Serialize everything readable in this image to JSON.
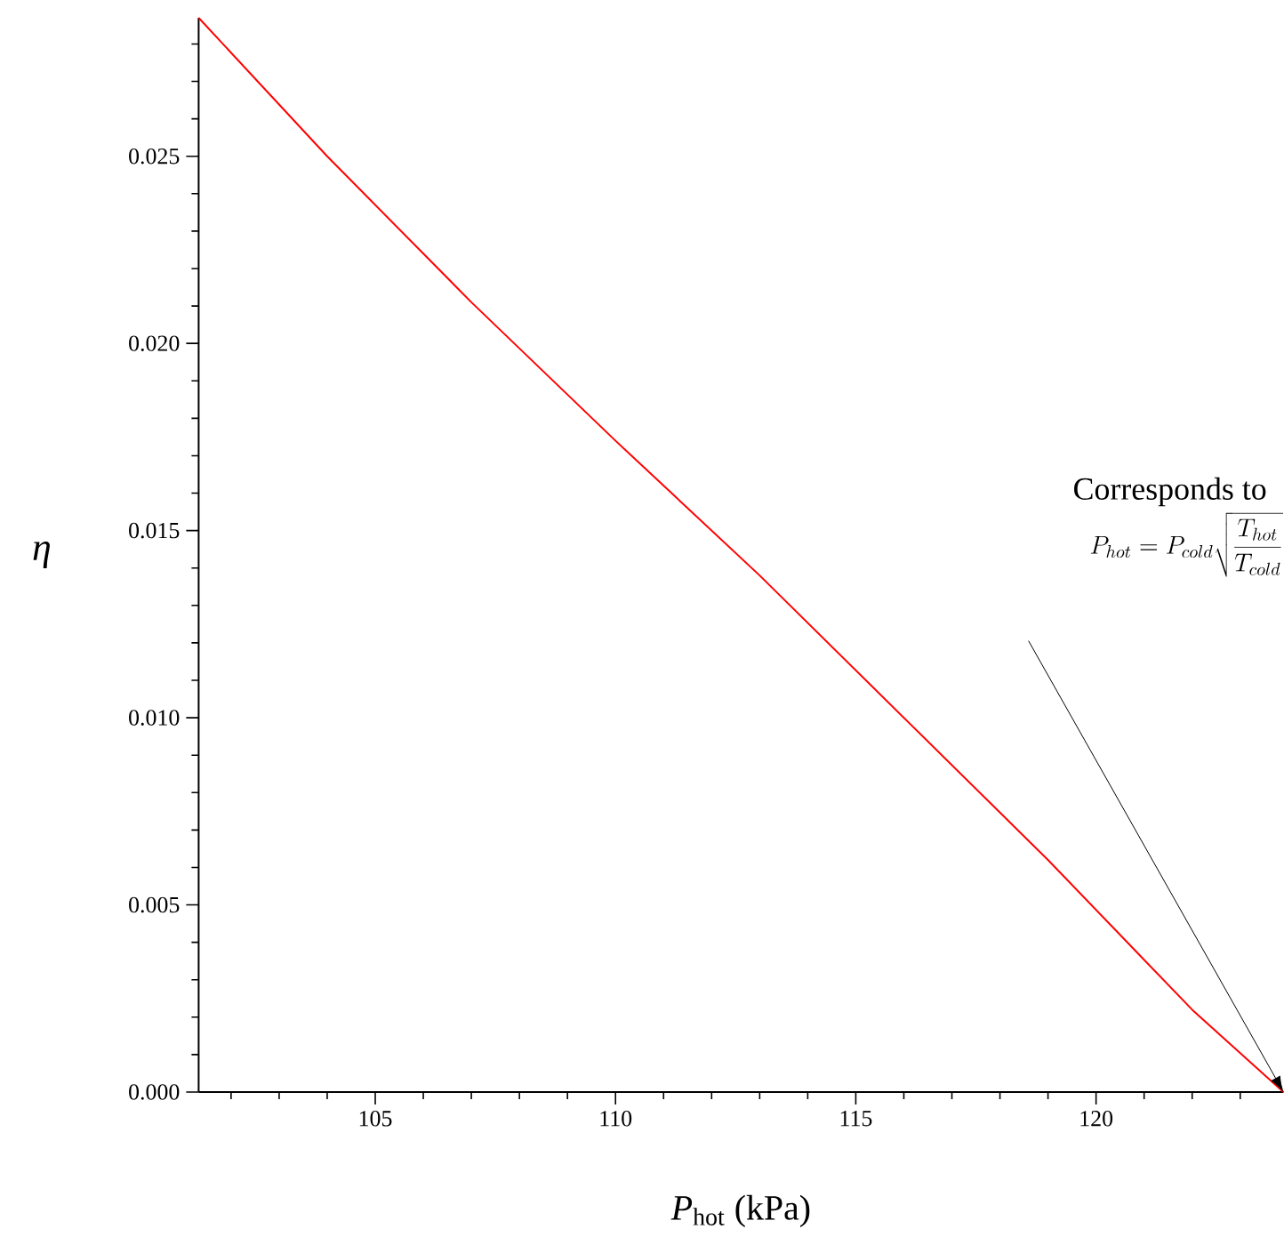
{
  "chart_data": {
    "type": "line",
    "xlabel": "*P*$_{hot}$ (kPa)",
    "ylabel": "*η*",
    "x": [
      101.325,
      104,
      107,
      110,
      113,
      116,
      119,
      122,
      123.9
    ],
    "series": [
      {
        "color": "#ff0000",
        "values": [
          0.0287,
          0.025,
          0.0211,
          0.0174,
          0.0138,
          0.01,
          0.0062,
          0.0022,
          0
        ]
      }
    ],
    "xlim": [
      101.325,
      123.9
    ],
    "ylim": [
      0,
      0.0287
    ],
    "xticks": [
      {
        "value": 102,
        "label": null
      },
      {
        "value": 103,
        "label": null
      },
      {
        "value": 104,
        "label": null
      },
      105,
      {
        "value": 106,
        "label": null
      },
      {
        "value": 107,
        "label": null
      },
      {
        "value": 108,
        "label": null
      },
      {
        "value": 109,
        "label": null
      },
      110,
      {
        "value": 111,
        "label": null
      },
      {
        "value": 112,
        "label": null
      },
      {
        "value": 113,
        "label": null
      },
      {
        "value": 114,
        "label": null
      },
      115,
      {
        "value": 116,
        "label": null
      },
      {
        "value": 117,
        "label": null
      },
      {
        "value": 118,
        "label": null
      },
      {
        "value": 119,
        "label": null
      },
      120,
      {
        "value": 121,
        "label": null
      },
      {
        "value": 122,
        "label": null
      },
      {
        "value": 123,
        "label": null
      }
    ],
    "yticks": [
      {
        "value": 0,
        "label": "0.000"
      },
      {
        "value": 0.001,
        "label": null
      },
      {
        "value": 0.002,
        "label": null
      },
      {
        "value": 0.003,
        "label": null
      },
      {
        "value": 0.004,
        "label": null
      },
      {
        "value": 0.005,
        "label": "0.005"
      },
      {
        "value": 0.006,
        "label": null
      },
      {
        "value": 0.007,
        "label": null
      },
      {
        "value": 0.008,
        "label": null
      },
      {
        "value": 0.009,
        "label": null
      },
      {
        "value": 0.01,
        "label": "0.010"
      },
      {
        "value": 0.011,
        "label": null
      },
      {
        "value": 0.012,
        "label": null
      },
      {
        "value": 0.013,
        "label": null
      },
      {
        "value": 0.014,
        "label": null
      },
      {
        "value": 0.015,
        "label": "0.015"
      },
      {
        "value": 0.016,
        "label": null
      },
      {
        "value": 0.017,
        "label": null
      },
      {
        "value": 0.018,
        "label": null
      },
      {
        "value": 0.019,
        "label": null
      },
      {
        "value": 0.02,
        "label": "0.020"
      },
      {
        "value": 0.021,
        "label": null
      },
      {
        "value": 0.022,
        "label": null
      },
      {
        "value": 0.023,
        "label": null
      },
      {
        "value": 0.024,
        "label": null
      },
      {
        "value": 0.025,
        "label": "0.025"
      },
      {
        "value": 0.026,
        "label": null
      },
      {
        "value": 0.027,
        "label": null
      },
      {
        "value": 0.028,
        "label": null
      }
    ],
    "annotations": [
      "Corresponds to",
      "P_{hot} = P_{cold}\\sqrt{\\frac{T_{hot}}{T_{cold}}}"
    ],
    "grid": false,
    "marker": "none",
    "line_style": "solid"
  }
}
